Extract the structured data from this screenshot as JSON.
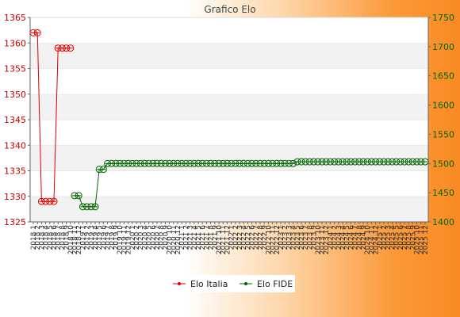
{
  "chart_data": {
    "type": "line",
    "title": "Grafico Elo",
    "xlabel": "",
    "ylabel_left": "",
    "ylabel_right": "",
    "y_left_range": [
      1325,
      1365
    ],
    "y_left_ticks": [
      1325,
      1330,
      1335,
      1340,
      1345,
      1350,
      1355,
      1360,
      1365
    ],
    "y_right_range": [
      1400,
      1750
    ],
    "y_right_ticks": [
      1400,
      1450,
      1500,
      1550,
      1600,
      1650,
      1700,
      1750
    ],
    "grid": true,
    "grid_style": "alternating horizontal bands",
    "legend_position": "bottom-center",
    "x_tick_labels": [
      "2018 1",
      "2018 2",
      "2018 3",
      "2018 4",
      "2018 5",
      "2018 6",
      "2018 7",
      "2018 8",
      "2018 9",
      "2018 10",
      "2018 11",
      "2018 12",
      "2019 1",
      "2019 2",
      "2019 3",
      "2019 4",
      "2019 5",
      "2019 6",
      "2019 7",
      "2019 8",
      "2019 9",
      "2019 10",
      "2019 11",
      "2019 12",
      "2020 1",
      "2020 2",
      "2020 3",
      "2020 4",
      "2020 5",
      "2020 6",
      "2020 7",
      "2020 8",
      "2020 9",
      "2020 10",
      "2020 11",
      "2020 12",
      "2021 1",
      "2021 2",
      "2021 3",
      "2021 4",
      "2021 5",
      "2021 6",
      "2021 7",
      "2021 8",
      "2021 9",
      "2021 10",
      "2021 11",
      "2021 12",
      "2022 1",
      "2022 2",
      "2022 3",
      "2022 4",
      "2022 5",
      "2022 6",
      "2022 7",
      "2022 8",
      "2022 9",
      "2022 10",
      "2022 11",
      "2022 12",
      "2023 1",
      "2023 2",
      "2023 3",
      "2023 4",
      "2023 5",
      "2023 6",
      "2023 7",
      "2023 8",
      "2023 9",
      "2023 10",
      "2023 11",
      "2023 12",
      "2024 1",
      "2024 2",
      "2024 3",
      "2024 4",
      "2024 5",
      "2024 6",
      "2024 7",
      "2024 8",
      "2024 9",
      "2024 10",
      "2024 11",
      "2024 12",
      "2025 1",
      "2025 2",
      "2025 3",
      "2025 4",
      "2025 5",
      "2025 6",
      "2025 7",
      "2025 8",
      "2025 9",
      "2025 10",
      "2025 11",
      "2025 12"
    ],
    "series": [
      {
        "name": "Elo Italia",
        "axis": "left",
        "color": "#e00000",
        "values": [
          1362,
          1362,
          1329,
          1329,
          1329,
          1329,
          1359,
          1359,
          1359,
          1359,
          null,
          null,
          null,
          null,
          null,
          null,
          null,
          null,
          null,
          null,
          null,
          null,
          null,
          null,
          null,
          null,
          null,
          null,
          null,
          null,
          null,
          null,
          null,
          null,
          null,
          null,
          null,
          null,
          null,
          null,
          null,
          null,
          null,
          null,
          null,
          null,
          null,
          null,
          null,
          null,
          null,
          null,
          null,
          null,
          null,
          null,
          null,
          null,
          null,
          null,
          null,
          null,
          null,
          null,
          null,
          null,
          null,
          null,
          null,
          null,
          null,
          null,
          null,
          null,
          null,
          null,
          null,
          null,
          null,
          null,
          null,
          null,
          null,
          null,
          null,
          null,
          null,
          null,
          null,
          null,
          null,
          null,
          null,
          null,
          null,
          null
        ]
      },
      {
        "name": "Elo FIDE",
        "axis": "right",
        "color": "#006400",
        "values": [
          null,
          null,
          null,
          null,
          null,
          null,
          null,
          null,
          null,
          null,
          1445,
          1445,
          1426,
          1426,
          1426,
          1426,
          1490,
          1490,
          1500,
          1500,
          1500,
          1500,
          1500,
          1500,
          1500,
          1500,
          1500,
          1500,
          1500,
          1500,
          1500,
          1500,
          1500,
          1500,
          1500,
          1500,
          1500,
          1500,
          1500,
          1500,
          1500,
          1500,
          1500,
          1500,
          1500,
          1500,
          1500,
          1500,
          1500,
          1500,
          1500,
          1500,
          1500,
          1500,
          1500,
          1500,
          1500,
          1500,
          1500,
          1500,
          1500,
          1500,
          1500,
          1500,
          1503,
          1503,
          1503,
          1503,
          1503,
          1503,
          1503,
          1503,
          1503,
          1503,
          1503,
          1503,
          1503,
          1503,
          1503,
          1503,
          1503,
          1503,
          1503,
          1503,
          1503,
          1503,
          1503,
          1503,
          1503,
          1503,
          1503,
          1503,
          1503,
          1503,
          1503,
          1503
        ]
      }
    ]
  }
}
